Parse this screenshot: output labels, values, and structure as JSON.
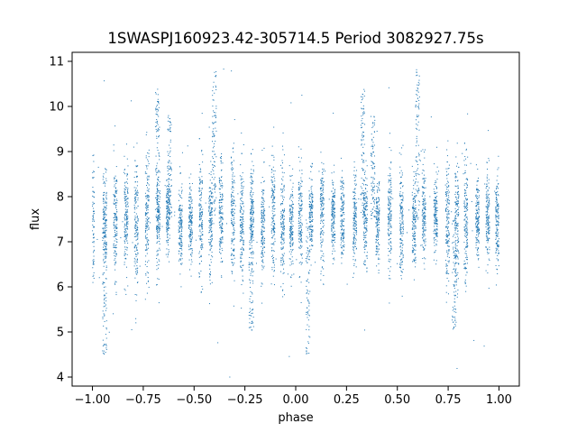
{
  "chart_data": {
    "type": "scatter",
    "title": "1SWASPJ160923.42-305714.5 Period 3082927.75s",
    "xlabel": "phase",
    "ylabel": "flux",
    "xlim": [
      -1.1,
      1.1
    ],
    "ylim": [
      3.8,
      11.2
    ],
    "xticks": [
      -1.0,
      -0.75,
      -0.5,
      -0.25,
      0.0,
      0.25,
      0.5,
      0.75,
      1.0
    ],
    "xtick_labels": [
      "−1.00",
      "−0.75",
      "−0.50",
      "−0.25",
      "0.00",
      "0.25",
      "0.50",
      "0.75",
      "1.00"
    ],
    "yticks": [
      4,
      5,
      6,
      7,
      8,
      9,
      10,
      11
    ],
    "ytick_labels": [
      "4",
      "5",
      "6",
      "7",
      "8",
      "9",
      "10",
      "11"
    ],
    "grid": false,
    "legend": "none",
    "marker_color": "#1f77b4",
    "marker_size": 1,
    "series": [
      {
        "baseline_flux": 7.5,
        "flux_scatter": 0.55,
        "phase_range": [
          -1.0,
          1.0
        ],
        "approx_point_count": 6000,
        "flares": [
          {
            "phase": -0.4,
            "peak": 10.9
          },
          {
            "phase": 0.6,
            "peak": 10.9
          },
          {
            "phase": -0.68,
            "peak": 10.4
          },
          {
            "phase": 0.33,
            "peak": 10.4
          },
          {
            "phase": -0.62,
            "peak": 9.8
          },
          {
            "phase": 0.38,
            "peak": 9.8
          }
        ],
        "dips": [
          {
            "phase": -0.94,
            "min": 4.5
          },
          {
            "phase": 0.06,
            "min": 4.5
          },
          {
            "phase": -0.22,
            "min": 5.0
          },
          {
            "phase": 0.78,
            "min": 5.0
          }
        ]
      }
    ]
  }
}
